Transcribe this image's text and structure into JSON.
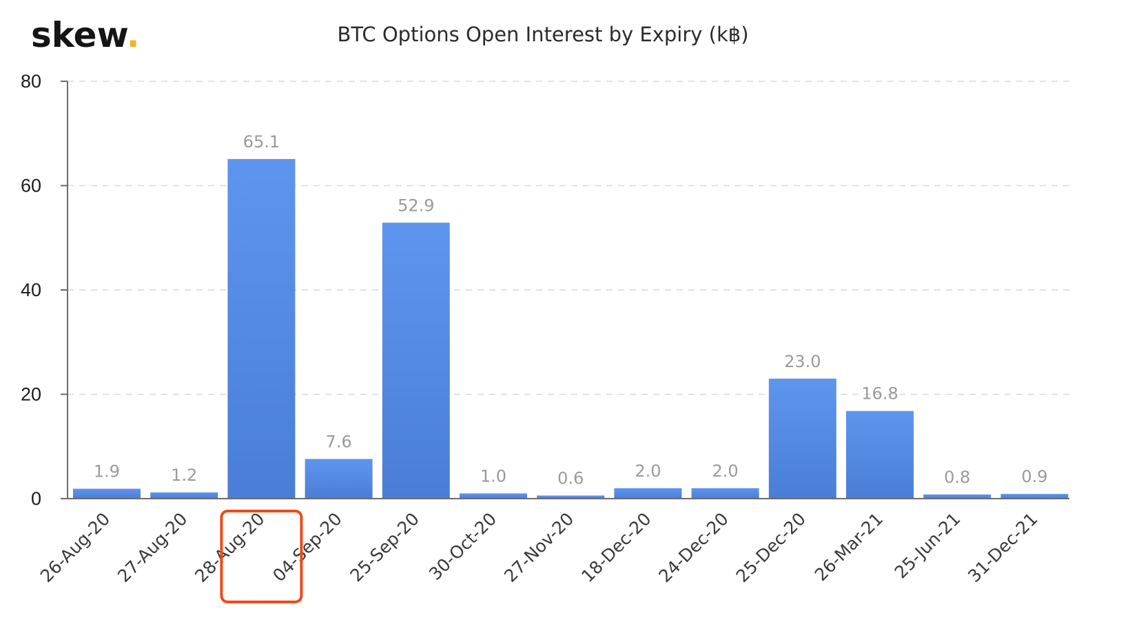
{
  "logo": {
    "text": "skew",
    "dot": ".",
    "dot_color": "#f0b429"
  },
  "chart_data": {
    "type": "bar",
    "title": "BTC Options Open Interest by Expiry (k฿)",
    "xlabel": "",
    "ylabel": "",
    "categories": [
      "26-Aug-20",
      "27-Aug-20",
      "28-Aug-20",
      "04-Sep-20",
      "25-Sep-20",
      "30-Oct-20",
      "27-Nov-20",
      "18-Dec-20",
      "24-Dec-20",
      "25-Dec-20",
      "26-Mar-21",
      "25-Jun-21",
      "31-Dec-21"
    ],
    "values": [
      1.9,
      1.2,
      65.1,
      7.6,
      52.9,
      1.0,
      0.6,
      2.0,
      2.0,
      23.0,
      16.8,
      0.8,
      0.9
    ],
    "value_labels": [
      "1.9",
      "1.2",
      "65.1",
      "7.6",
      "52.9",
      "1.0",
      "0.6",
      "2.0",
      "2.0",
      "23.0",
      "16.8",
      "0.8",
      "0.9"
    ],
    "ylim": [
      0,
      80
    ],
    "yticks": [
      0,
      20,
      40,
      60,
      80
    ],
    "grid": true,
    "bar_color_top": "#5e95ee",
    "bar_color_bottom": "#4a7ed6",
    "highlighted_category": "28-Aug-20",
    "highlight_color": "#ee4a17"
  }
}
